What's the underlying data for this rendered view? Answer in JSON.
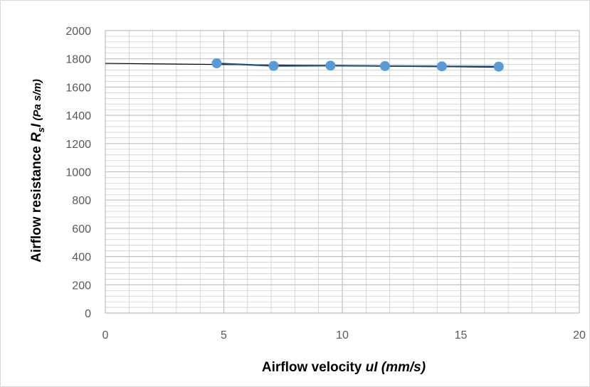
{
  "chart_data": {
    "type": "scatter",
    "title": "",
    "xlabel": {
      "prefix": "Airflow velocity ",
      "var": "uI",
      "units": " (mm/s)"
    },
    "ylabel": {
      "prefix": "Airflow resistance ",
      "var": "R",
      "sub": "s",
      "var2": "I",
      "units": " (Pa s/m)"
    },
    "xlim": [
      0,
      20
    ],
    "ylim": [
      0,
      2000
    ],
    "x_ticks": [
      0,
      5,
      10,
      15,
      20
    ],
    "y_ticks": [
      0,
      200,
      400,
      600,
      800,
      1000,
      1200,
      1400,
      1600,
      1800,
      2000
    ],
    "grid": true,
    "series": [
      {
        "kind": "markers-with-line",
        "x": [
          4.7,
          7.1,
          9.5,
          11.8,
          14.2,
          16.6
        ],
        "y": [
          1768,
          1750,
          1752,
          1749,
          1747,
          1745
        ],
        "marker_color": "#5B9BD5",
        "line_color": "#1F4E79"
      },
      {
        "kind": "trendline",
        "x": [
          0,
          16.6
        ],
        "y": [
          1768,
          1740
        ],
        "line_color": "#000000"
      }
    ],
    "colors": {
      "grid": "#BFBFBF",
      "tick_text": "#595959",
      "frame": "#D9D9D9"
    }
  }
}
